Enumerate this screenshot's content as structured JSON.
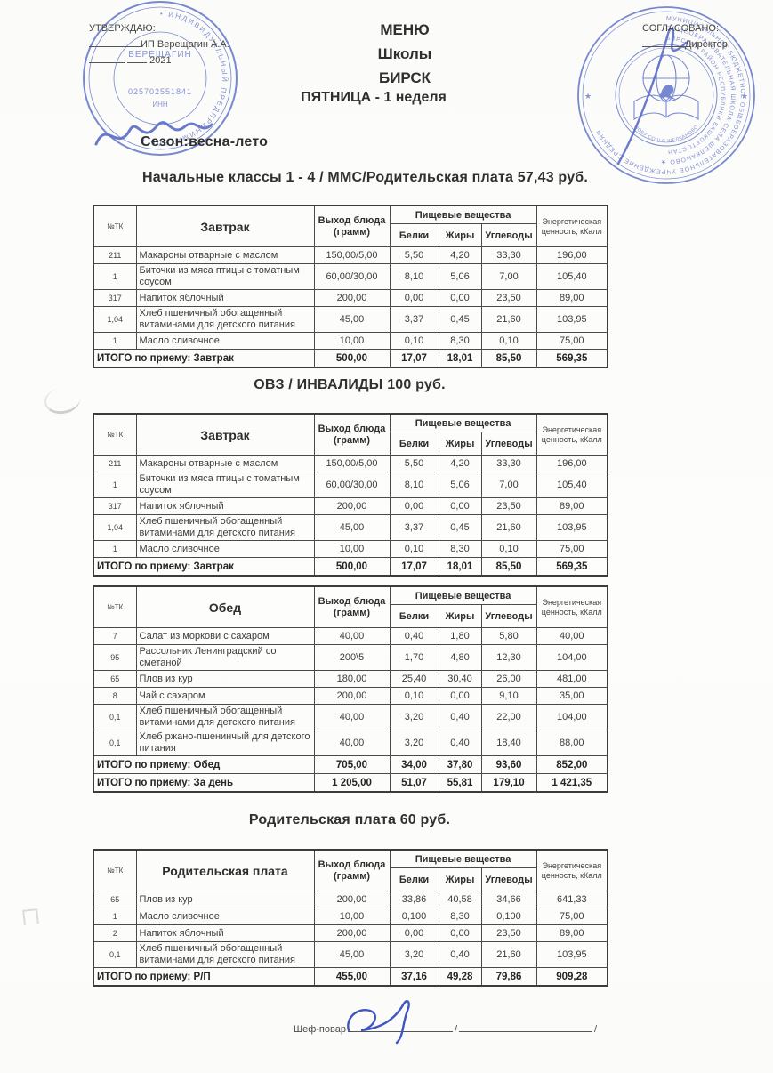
{
  "header": {
    "approve_label": "УТВЕРЖДАЮ:",
    "approve_name": "ИП Верещагин А.А.",
    "approve_year": "2021",
    "agree_label": "СОГЛАСОВАНО:",
    "agree_role": "Директор",
    "title_line1": "МЕНЮ",
    "title_line2": "Школы",
    "title_line3": "БИРСК",
    "subtitle": "ПЯТНИЦА - 1 неделя",
    "season": "Сезон:весна-лето"
  },
  "headings": {
    "section1": "Начальные классы 1 - 4 / ММС/Родительская плата 57,43 руб.",
    "section2": "ОВЗ / ИНВАЛИДЫ 100 руб.",
    "section4": "Родительская плата 60 руб."
  },
  "columns": {
    "num": "№ТК",
    "out": "Выход блюда (грамм)",
    "group": "Пищевые вещества",
    "protein": "Белки",
    "fat": "Жиры",
    "carb": "Углеводы",
    "energy": "Энергетическая ценность, кКалл"
  },
  "tables": [
    {
      "meal": "Завтрак",
      "rows": [
        [
          "211",
          "Макароны отварные с маслом",
          "150,00/5,00",
          "5,50",
          "4,20",
          "33,30",
          "196,00"
        ],
        [
          "1",
          "Биточки из мяса птицы с томатным соусом",
          "60,00/30,00",
          "8,10",
          "5,06",
          "7,00",
          "105,40"
        ],
        [
          "317",
          "Напиток яблочный",
          "200,00",
          "0,00",
          "0,00",
          "23,50",
          "89,00"
        ],
        [
          "1,04",
          "Хлеб пшеничный обогащенный витаминами для детского питания",
          "45,00",
          "3,37",
          "0,45",
          "21,60",
          "103,95"
        ],
        [
          "1",
          "Масло сливочное",
          "10,00",
          "0,10",
          "8,30",
          "0,10",
          "75,00"
        ]
      ],
      "totals": [
        [
          "ИТОГО по приему: Завтрак",
          "500,00",
          "17,07",
          "18,01",
          "85,50",
          "569,35"
        ]
      ]
    },
    {
      "meal": "Завтрак",
      "rows": [
        [
          "211",
          "Макароны отварные с маслом",
          "150,00/5,00",
          "5,50",
          "4,20",
          "33,30",
          "196,00"
        ],
        [
          "1",
          "Биточки из мяса птицы с томатным соусом",
          "60,00/30,00",
          "8,10",
          "5,06",
          "7,00",
          "105,40"
        ],
        [
          "317",
          "Напиток яблочный",
          "200,00",
          "0,00",
          "0,00",
          "23,50",
          "89,00"
        ],
        [
          "1,04",
          "Хлеб пшеничный обогащенный витаминами для детского питания",
          "45,00",
          "3,37",
          "0,45",
          "21,60",
          "103,95"
        ],
        [
          "1",
          "Масло сливочное",
          "10,00",
          "0,10",
          "8,30",
          "0,10",
          "75,00"
        ]
      ],
      "totals": [
        [
          "ИТОГО по приему: Завтрак",
          "500,00",
          "17,07",
          "18,01",
          "85,50",
          "569,35"
        ]
      ]
    },
    {
      "meal": "Обед",
      "rows": [
        [
          "7",
          "Салат из моркови с сахаром",
          "40,00",
          "0,40",
          "1,80",
          "5,80",
          "40,00"
        ],
        [
          "95",
          "Рассольник Ленинградский со сметаной",
          "200\\5",
          "1,70",
          "4,80",
          "12,30",
          "104,00"
        ],
        [
          "65",
          "Плов из кур",
          "180,00",
          "25,40",
          "30,40",
          "26,00",
          "481,00"
        ],
        [
          "8",
          "Чай с сахаром",
          "200,00",
          "0,10",
          "0,00",
          "9,10",
          "35,00"
        ],
        [
          "0,1",
          "Хлеб пшеничный обогащенный витаминами для детского питания",
          "40,00",
          "3,20",
          "0,40",
          "22,00",
          "104,00"
        ],
        [
          "0,1",
          "Хлеб ржано-пшенинчый для детского питания",
          "40,00",
          "3,20",
          "0,40",
          "18,40",
          "88,00"
        ]
      ],
      "totals": [
        [
          "ИТОГО по приему: Обед",
          "705,00",
          "34,00",
          "37,80",
          "93,60",
          "852,00"
        ],
        [
          "ИТОГО по приему: За день",
          "1 205,00",
          "51,07",
          "55,81",
          "179,10",
          "1 421,35"
        ]
      ]
    },
    {
      "meal": "Родительская плата",
      "rows": [
        [
          "65",
          "Плов из кур",
          "200,00",
          "33,86",
          "40,58",
          "34,66",
          "641,33"
        ],
        [
          "1",
          "Масло сливочное",
          "10,00",
          "0,100",
          "8,30",
          "0,100",
          "75,00"
        ],
        [
          "2",
          "Напиток яблочный",
          "200,00",
          "0,00",
          "0,00",
          "23,50",
          "89,00"
        ],
        [
          "0,1",
          "Хлеб пшеничный обогащенный витаминами для детского питания",
          "45,00",
          "3,20",
          "0,40",
          "21,60",
          "103,95"
        ]
      ],
      "totals": [
        [
          "ИТОГО по приему: Р/П",
          "455,00",
          "37,16",
          "49,28",
          "79,86",
          "909,28"
        ]
      ]
    }
  ],
  "stamps": {
    "left": {
      "ring_text": "• ИНДИВИДУАЛЬНЫЙ  ПРЕДПРИНИМАТЕЛЬ •",
      "center_line1": "ВЕРЕЩАГИН",
      "center_line2": "025702551841",
      "center_line3": "ИНН"
    },
    "right": {
      "ring1": "МУНИЦИПАЛЬНОЕ БЮДЖЕТНОЕ ОБЩЕОБРАЗОВАТЕЛЬНОЕ УЧРЕЖДЕНИЕ СРЕДНЯЯ",
      "ring2": "ОБЩЕОБРАЗОВАТЕЛЬНАЯ ШКОЛА СЕЛА ШЕЛКАНОВО  ★",
      "ring3": "БИРСКИЙ РАЙОН РЕСПУБЛИКИ БАШКОРТОСТАН",
      "caption": "МОБУ СОШ С ШЕЛКАНОВО"
    }
  },
  "footer": {
    "chef_label": "Шеф-повар",
    "slash1": "/",
    "slash2": "/"
  },
  "colors": {
    "stamp_blue": "#5b6fc5",
    "signature_blue": "#3f55c0",
    "ink": "#3a3a3a"
  }
}
